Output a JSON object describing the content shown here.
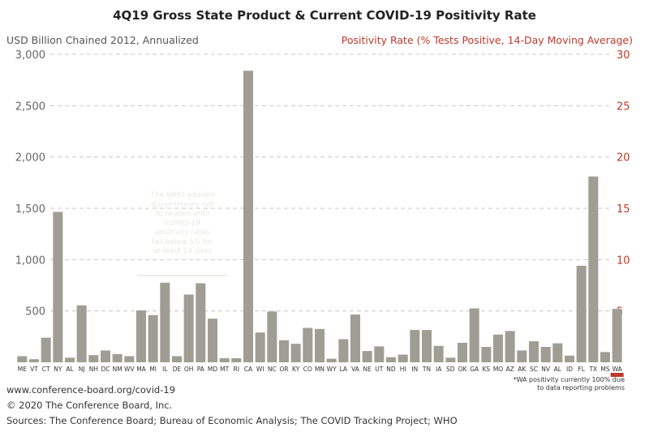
{
  "chart_data": {
    "type": "bar",
    "title": "4Q19 Gross State Product & Current COVID-19 Positivity Rate",
    "ylabel_left": "USD Billion Chained 2012, Annualized",
    "ylabel_right": "Positivity Rate (% Tests Positive, 14-Day Moving Average)",
    "ylim_left": [
      0,
      3000
    ],
    "ylim_right": [
      0,
      30
    ],
    "yticks_left": [
      "3,000",
      "2,500",
      "2,000",
      "1,500",
      "1,000",
      "500"
    ],
    "yticks_right": [
      "30",
      "25",
      "20",
      "15",
      "10",
      "5"
    ],
    "grid": true,
    "categories": [
      "ME",
      "VT",
      "CT",
      "NY",
      "AL",
      "NJ",
      "NH",
      "DC",
      "NM",
      "WV",
      "MA",
      "MI",
      "IL",
      "DE",
      "OH",
      "PA",
      "MD",
      "MT",
      "RI",
      "CA",
      "WI",
      "NC",
      "OR",
      "KY",
      "CO",
      "MN",
      "WY",
      "LA",
      "VA",
      "NE",
      "UT",
      "ND",
      "HI",
      "IN",
      "TN",
      "IA",
      "SD",
      "OK",
      "GA",
      "KS",
      "MO",
      "AZ",
      "AK",
      "SC",
      "NV",
      "AL",
      "ID",
      "FL",
      "TX",
      "MS",
      "WA"
    ],
    "series": [
      {
        "values": [
          60,
          30,
          240,
          1465,
          45,
          555,
          70,
          115,
          80,
          60,
          505,
          460,
          775,
          60,
          660,
          770,
          425,
          40,
          40,
          2840,
          290,
          495,
          215,
          180,
          335,
          325,
          35,
          225,
          465,
          110,
          155,
          50,
          75,
          315,
          315,
          160,
          45,
          190,
          525,
          150,
          270,
          305,
          115,
          205,
          150,
          185,
          65,
          940,
          1810,
          100,
          520
        ]
      }
    ],
    "wa_marker_color": "#c0392b",
    "bar_color": "#a09d94",
    "annotation": [
      "The WHO advises",
      "governments not",
      "to reopen until",
      "COVID-19",
      "positivity rates",
      "fall below 5% for",
      "at least 14 days"
    ]
  },
  "footnote": [
    "*WA positivity currently 100% due",
    "to data reporting problems"
  ],
  "footer": {
    "url": "www.conference-board.org/covid-19",
    "copyright": "© 2020 The Conference Board, Inc.",
    "sources": "Sources: The Conference Board; Bureau of Economic Analysis; The COVID Tracking Project; WHO"
  }
}
